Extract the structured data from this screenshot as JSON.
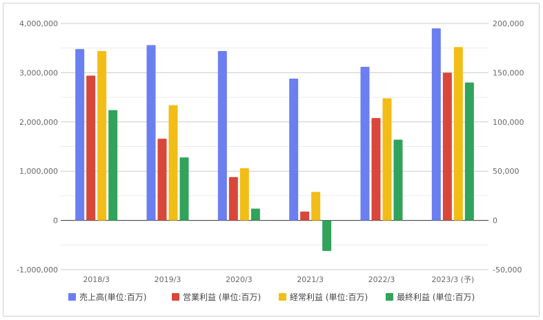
{
  "chart_data": {
    "type": "bar",
    "categories": [
      "2018/3",
      "2019/3",
      "2020/3",
      "2021/3",
      "2022/3",
      "2023/3 (予)"
    ],
    "series": [
      {
        "name": "売上高(単位:百万)",
        "axis": "left",
        "color": "#6b7ff0",
        "values": [
          3480000,
          3560000,
          3440000,
          2880000,
          3120000,
          3900000
        ]
      },
      {
        "name": "営業利益 (単位:百万)",
        "axis": "right",
        "color": "#d9473b",
        "values": [
          147000,
          83000,
          44000,
          9000,
          104000,
          150000
        ]
      },
      {
        "name": "経常利益 (単位:百万)",
        "axis": "right",
        "color": "#f2bd17",
        "values": [
          172000,
          117000,
          53000,
          29000,
          124000,
          176000
        ]
      },
      {
        "name": "最終利益 (単位:百万)",
        "axis": "right",
        "color": "#31a35a",
        "values": [
          112000,
          64000,
          12000,
          -31000,
          82000,
          140000
        ]
      }
    ],
    "y_left": {
      "ylim": [
        -1000000,
        4000000
      ],
      "ticks": [
        4000000,
        3000000,
        2000000,
        1000000,
        0,
        -1000000
      ],
      "tick_labels": [
        "4,000,000",
        "3,000,000",
        "2,000,000",
        "1,000,000",
        "0",
        "-1,000,000"
      ]
    },
    "y_right": {
      "ylim": [
        -50000,
        200000
      ],
      "ticks": [
        200000,
        150000,
        100000,
        50000,
        0,
        -50000
      ],
      "tick_labels": [
        "200,000",
        "150,000",
        "100,000",
        "50,000",
        "0",
        "-50,000"
      ]
    },
    "grid": true,
    "legend_position": "bottom",
    "title": "",
    "xlabel": "",
    "ylabel": ""
  }
}
